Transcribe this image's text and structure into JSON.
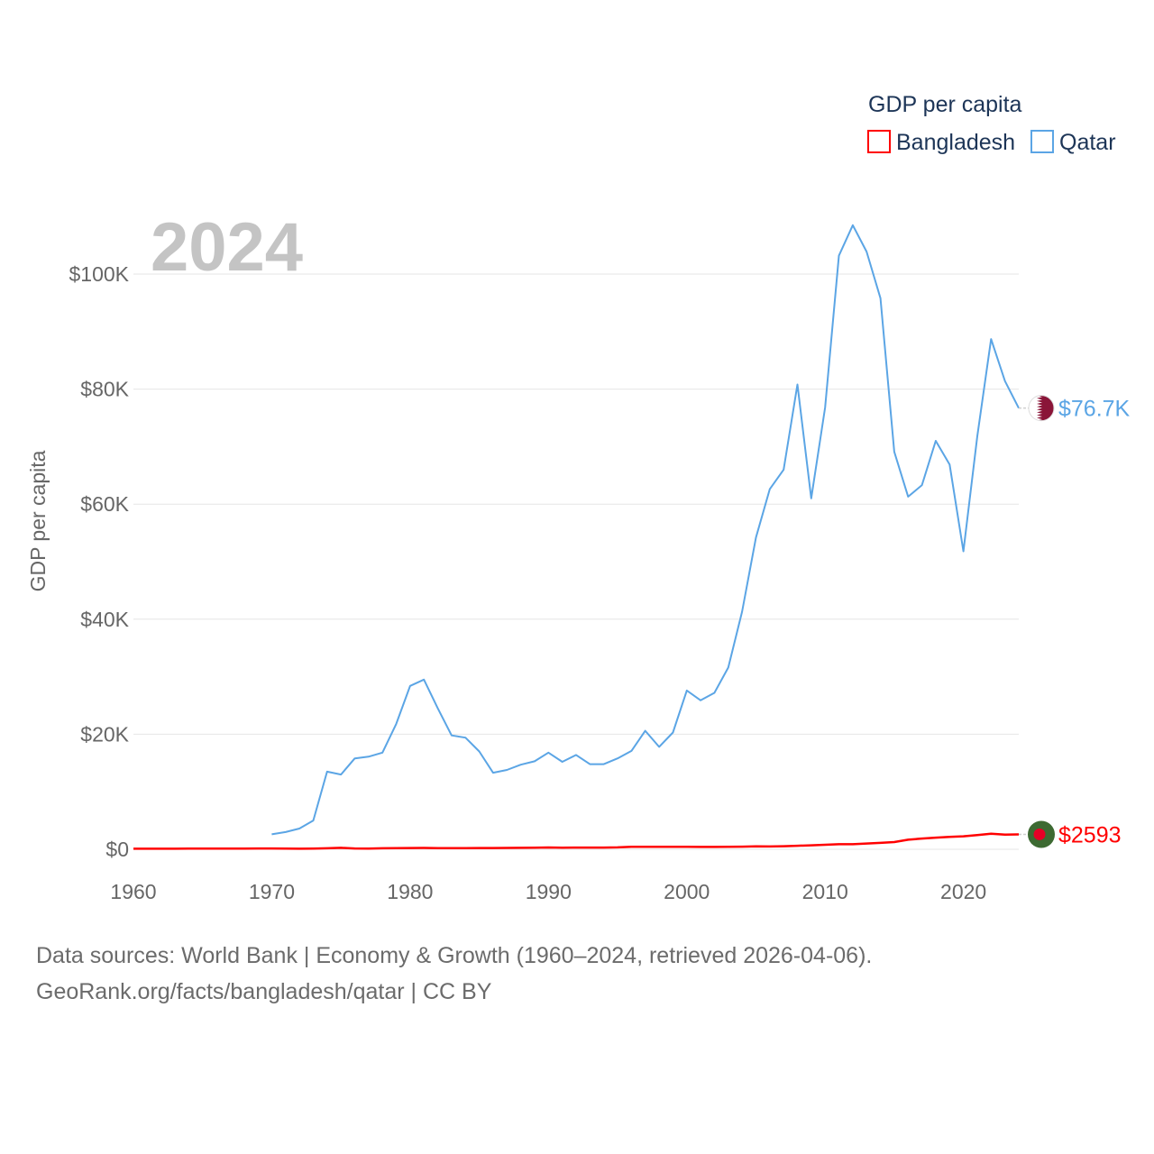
{
  "chart_data": {
    "type": "line",
    "title": "GDP per capita",
    "year_label": "2024",
    "xlabel": "",
    "ylabel": "GDP per capita",
    "xlim": [
      1960,
      2024
    ],
    "ylim": [
      0,
      110000
    ],
    "x_ticks": [
      1960,
      1970,
      1980,
      1990,
      2000,
      2010,
      2020
    ],
    "x_tick_labels": [
      "1960",
      "1970",
      "1980",
      "1990",
      "2000",
      "2010",
      "2020"
    ],
    "y_ticks": [
      0,
      20000,
      40000,
      60000,
      80000,
      100000
    ],
    "y_tick_labels": [
      "$0",
      "$20K",
      "$40K",
      "$60K",
      "$80K",
      "$100K"
    ],
    "legend_title": "GDP per capita",
    "legend_position": "top-right",
    "series": [
      {
        "name": "Bangladesh",
        "color": "#ff0000",
        "end_label": "$2593",
        "flag_icon": "bangladesh-flag-icon",
        "x": [
          1960,
          1961,
          1962,
          1963,
          1964,
          1965,
          1966,
          1967,
          1968,
          1969,
          1970,
          1971,
          1972,
          1973,
          1974,
          1975,
          1976,
          1977,
          1978,
          1979,
          1980,
          1981,
          1982,
          1983,
          1984,
          1985,
          1986,
          1987,
          1988,
          1989,
          1990,
          1991,
          1992,
          1993,
          1994,
          1995,
          1996,
          1997,
          1998,
          1999,
          2000,
          2001,
          2002,
          2003,
          2004,
          2005,
          2006,
          2007,
          2008,
          2009,
          2010,
          2011,
          2012,
          2013,
          2014,
          2015,
          2016,
          2017,
          2018,
          2019,
          2020,
          2021,
          2022,
          2023,
          2024
        ],
        "values": [
          89,
          93,
          96,
          95,
          103,
          110,
          118,
          127,
          131,
          140,
          135,
          132,
          98,
          125,
          178,
          255,
          140,
          124,
          178,
          202,
          225,
          231,
          209,
          188,
          202,
          222,
          220,
          236,
          248,
          263,
          306,
          289,
          298,
          300,
          300,
          335,
          420,
          420,
          430,
          430,
          418,
          410,
          400,
          420,
          460,
          500,
          490,
          540,
          610,
          690,
          780,
          870,
          880,
          1010,
          1120,
          1250,
          1660,
          1860,
          2020,
          2150,
          2250,
          2460,
          2690,
          2550,
          2593
        ]
      },
      {
        "name": "Qatar",
        "color": "#5ba5e5",
        "end_label": "$76.7K",
        "flag_icon": "qatar-flag-icon",
        "x": [
          1970,
          1971,
          1972,
          1973,
          1974,
          1975,
          1976,
          1977,
          1978,
          1979,
          1980,
          1981,
          1982,
          1983,
          1984,
          1985,
          1986,
          1987,
          1988,
          1989,
          1990,
          1991,
          1992,
          1993,
          1994,
          1995,
          1996,
          1997,
          1998,
          1999,
          2000,
          2001,
          2002,
          2003,
          2004,
          2005,
          2006,
          2007,
          2008,
          2009,
          2010,
          2011,
          2012,
          2013,
          2014,
          2015,
          2016,
          2017,
          2018,
          2019,
          2020,
          2021,
          2022,
          2023,
          2024
        ],
        "values": [
          2600,
          3000,
          3600,
          5000,
          13500,
          13000,
          15800,
          16100,
          16800,
          21800,
          28400,
          29500,
          24500,
          19800,
          19400,
          17000,
          13300,
          13800,
          14700,
          15300,
          16800,
          15200,
          16400,
          14800,
          14800,
          15800,
          17100,
          20600,
          17800,
          20300,
          27600,
          25900,
          27200,
          31600,
          41300,
          54200,
          62600,
          66000,
          80800,
          61000,
          76800,
          103200,
          108500,
          103900,
          95800,
          69100,
          61300,
          63300,
          71000,
          66900,
          51800,
          71800,
          88700,
          81400,
          76700
        ]
      }
    ]
  },
  "footer": {
    "line1": "Data sources: World Bank | Economy & Growth (1960–2024, retrieved 2026-04-06).",
    "line2": "GeoRank.org/facts/bangladesh/qatar | CC BY"
  }
}
